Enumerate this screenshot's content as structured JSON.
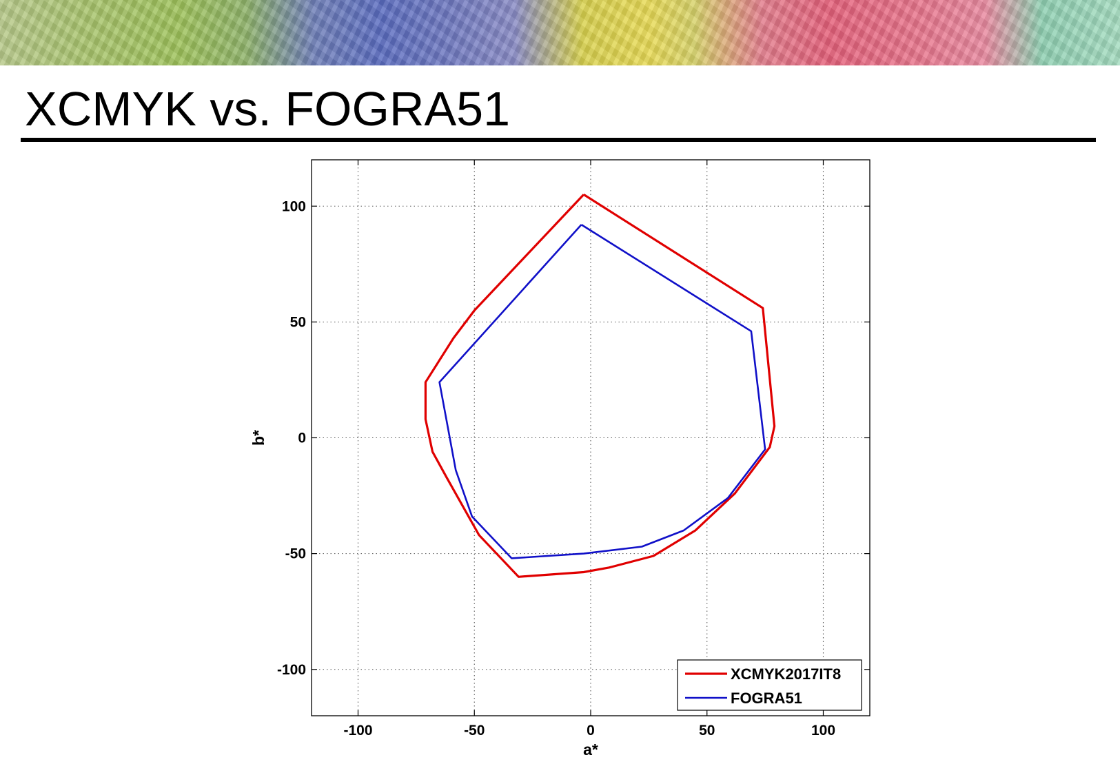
{
  "slide": {
    "title": "XCMYK vs. FOGRA51"
  },
  "chart_data": {
    "type": "line",
    "title": "",
    "xlabel": "a*",
    "ylabel": "b*",
    "xlim": [
      -120,
      120
    ],
    "ylim": [
      -120,
      120
    ],
    "xticks": [
      -100,
      -50,
      0,
      50,
      100
    ],
    "yticks": [
      -100,
      -50,
      0,
      50,
      100
    ],
    "xtick_labels": [
      "-100",
      "-50",
      "0",
      "50",
      "100"
    ],
    "ytick_labels": [
      "-100",
      "-50",
      "0",
      "50",
      "100"
    ],
    "grid": true,
    "legend_position": "bottom-right",
    "series": [
      {
        "name": "XCMYK2017IT8",
        "color": "#e00000",
        "points": [
          [
            -3,
            105
          ],
          [
            74,
            56
          ],
          [
            79,
            5
          ],
          [
            77,
            -4
          ],
          [
            62,
            -24
          ],
          [
            45,
            -40
          ],
          [
            27,
            -51
          ],
          [
            8,
            -56
          ],
          [
            -3,
            -58
          ],
          [
            -31,
            -60
          ],
          [
            -48,
            -42
          ],
          [
            -62,
            -17
          ],
          [
            -68,
            -6
          ],
          [
            -71,
            8
          ],
          [
            -71,
            24
          ],
          [
            -59,
            43
          ],
          [
            -50,
            55
          ],
          [
            -3,
            105
          ]
        ]
      },
      {
        "name": "FOGRA51",
        "color": "#1010c8",
        "points": [
          [
            -4,
            92
          ],
          [
            69,
            46
          ],
          [
            75,
            -5
          ],
          [
            59,
            -26
          ],
          [
            40,
            -40
          ],
          [
            22,
            -47
          ],
          [
            -3,
            -50
          ],
          [
            -34,
            -52
          ],
          [
            -51,
            -34
          ],
          [
            -58,
            -14
          ],
          [
            -65,
            24
          ],
          [
            -4,
            92
          ]
        ]
      }
    ]
  }
}
